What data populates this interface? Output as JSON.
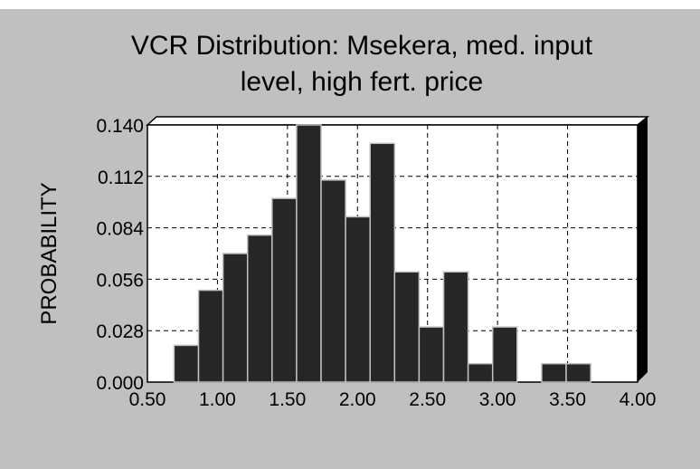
{
  "chart_data": {
    "type": "histogram",
    "title": [
      "VCR Distribution: Msekera, med. input",
      "level, high fert. price"
    ],
    "y_label": "PROBABILITY",
    "bins": [
      0.69,
      0.865,
      1.04,
      1.215,
      1.39,
      1.565,
      1.74,
      1.915,
      2.09,
      2.265,
      2.44,
      2.615,
      2.79,
      2.965,
      3.14,
      3.315,
      3.49,
      3.665
    ],
    "values": [
      0.02,
      0.05,
      0.07,
      0.08,
      0.1,
      0.14,
      0.11,
      0.09,
      0.13,
      0.06,
      0.03,
      0.06,
      0.01,
      0.03,
      0,
      0.01,
      0.01
    ],
    "color": "#262626",
    "xlim": [
      0.5,
      4.0
    ],
    "xticks": [
      {
        "value": 0.5,
        "label": "0.50"
      },
      {
        "value": 1.0,
        "label": "1.00"
      },
      {
        "value": 1.5,
        "label": "1.50"
      },
      {
        "value": 2.0,
        "label": "2.00"
      },
      {
        "value": 2.5,
        "label": "2.50"
      },
      {
        "value": 3.0,
        "label": "3.00"
      },
      {
        "value": 3.5,
        "label": "3.50"
      },
      {
        "value": 4.0,
        "label": "4.00"
      }
    ],
    "ylim": [
      0,
      0.14
    ],
    "yticks": [
      {
        "value": 0,
        "label": "0.000"
      },
      {
        "value": 0.028,
        "label": "0.028"
      },
      {
        "value": 0.056,
        "label": "0.056"
      },
      {
        "value": 0.084,
        "label": "0.084"
      },
      {
        "value": 0.112,
        "label": "0.112"
      },
      {
        "value": 0.14,
        "label": "0.140"
      }
    ],
    "grid": true
  }
}
